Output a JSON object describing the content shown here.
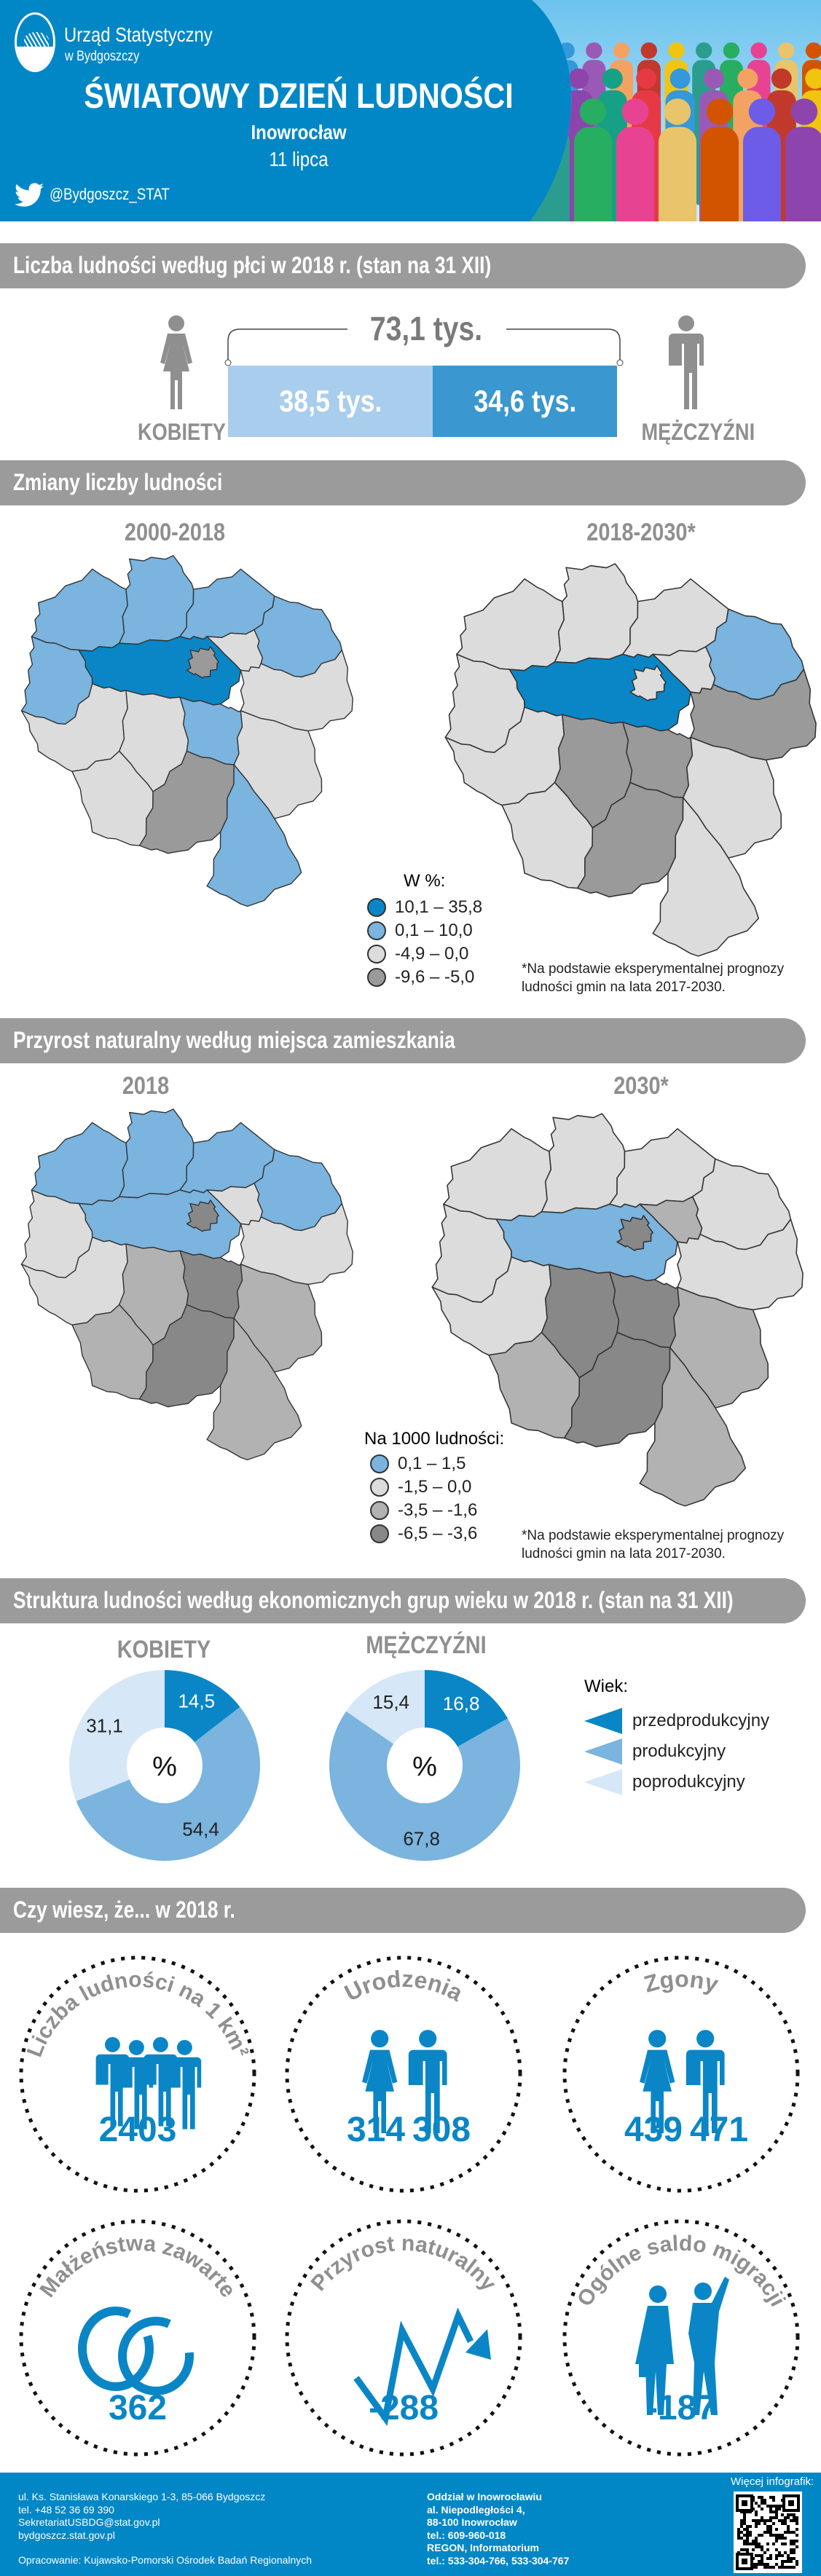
{
  "header": {
    "org_line1": "Urząd Statystyczny",
    "org_line2": "w Bydgoszczy",
    "title": "ŚWIATOWY DZIEŃ LUDNOŚCI",
    "city": "Inowrocław",
    "date": "11 lipca",
    "twitter": "@Bydgoszcz_STAT"
  },
  "sections": {
    "sex": "Liczba ludności według płci w 2018 r. (stan na 31 XII)",
    "change": "Zmiany liczby ludności",
    "natural": "Przyrost naturalny według miejsca zamieszkania",
    "structure": "Struktura ludności według ekonomicznych grup wieku w 2018 r. (stan na 31 XII)",
    "facts": "Czy wiesz, że... w 2018 r."
  },
  "sex": {
    "total": "73,1 tys.",
    "women_value": "38,5 tys.",
    "men_value": "34,6 tys.",
    "women_label": "KOBIETY",
    "men_label": "MĘŻCZYŹNI",
    "women_share": 0.527
  },
  "change": {
    "map1_title": "2000-2018",
    "map2_title": "2018-2030*",
    "legend_title": "W %:",
    "legend": [
      {
        "label": "10,1 – 35,8",
        "color": "#0a86c6"
      },
      {
        "label": "0,1 – 10,0",
        "color": "#7ab4df"
      },
      {
        "label": "-4,9 – 0,0",
        "color": "#dcdcdc"
      },
      {
        "label": "-9,6 – -5,0",
        "color": "#9a9a9a"
      }
    ],
    "footnote_1": "*Na podstawie eksperymentalnej prognozy",
    "footnote_2": "ludności gmin na lata 2017-2030.",
    "map1_classes": [
      1,
      1,
      1,
      1,
      1,
      0,
      2,
      2,
      2,
      2,
      1,
      2,
      2,
      3,
      1,
      3
    ],
    "map2_classes": [
      2,
      2,
      2,
      1,
      2,
      0,
      2,
      3,
      2,
      3,
      3,
      2,
      2,
      3,
      2,
      2
    ]
  },
  "natural": {
    "map1_title": "2018",
    "map2_title": "2030*",
    "legend_title": "Na 1000 ludności:",
    "legend": [
      {
        "label": "0,1 – 1,5",
        "color": "#7ab4df"
      },
      {
        "label": "-1,5 – 0,0",
        "color": "#dcdcdc"
      },
      {
        "label": "-3,5 – -1,6",
        "color": "#b2b2b2"
      },
      {
        "label": "-6,5 – -3,6",
        "color": "#888888"
      }
    ],
    "footnote_1": "*Na podstawie eksperymentalnej prognozy",
    "footnote_2": "ludności gmin na lata 2017-2030.",
    "map1_classes": [
      0,
      0,
      0,
      0,
      1,
      0,
      1,
      1,
      1,
      2,
      3,
      2,
      2,
      3,
      2,
      3
    ],
    "map2_classes": [
      1,
      1,
      1,
      1,
      1,
      0,
      2,
      1,
      1,
      3,
      3,
      2,
      2,
      3,
      2,
      3
    ]
  },
  "structure": {
    "center_symbol": "%",
    "legend_title": "Wiek:",
    "legend": [
      {
        "label": "przedprodukcyjny",
        "color": "#0a86c6"
      },
      {
        "label": "produkcyjny",
        "color": "#7ab4df"
      },
      {
        "label": "poprodukcyjny",
        "color": "#d6e7f7"
      }
    ]
  },
  "chart_data": [
    {
      "type": "pie",
      "title": "KOBIETY",
      "categories": [
        "przedprodukcyjny",
        "produkcyjny",
        "poprodukcyjny"
      ],
      "values": [
        14.5,
        54.4,
        31.1
      ],
      "unit": "%"
    },
    {
      "type": "pie",
      "title": "MĘŻCZYŹNI",
      "categories": [
        "przedprodukcyjny",
        "produkcyjny",
        "poprodukcyjny"
      ],
      "values": [
        16.8,
        67.8,
        15.4
      ],
      "unit": "%"
    }
  ],
  "facts": [
    {
      "label": "Liczba ludności na 1 km²",
      "values": [
        "2403"
      ],
      "icon": "people-group-icon"
    },
    {
      "label": "Urodzenia",
      "values": [
        "314",
        "308"
      ],
      "icon": "woman-man-icon"
    },
    {
      "label": "Zgony",
      "values": [
        "439",
        "471"
      ],
      "icon": "woman-man-icon"
    },
    {
      "label": "Małżeństwa zawarte",
      "values": [
        "362"
      ],
      "icon": "wedding-rings-icon"
    },
    {
      "label": "Przyrost naturalny",
      "values": [
        "-288"
      ],
      "icon": "zigzag-arrow-icon"
    },
    {
      "label": "Ogólne saldo migracji",
      "values": [
        "-187"
      ],
      "icon": "travelers-icon"
    }
  ],
  "footer": {
    "left": [
      "ul. Ks. Stanisława Konarskiego 1-3, 85-066 Bydgoszcz",
      "tel. +48 52 36 69 390",
      "SekretariatUSBDG@stat.gov.pl",
      "bydgoszcz.stat.gov.pl"
    ],
    "credit": "Opracowanie: Kujawsko-Pomorski Ośrodek Badań Regionalnych",
    "middle": [
      "Oddział w Inowrocławiu",
      "al. Niepodległości 4,",
      "88-100 Inowrocław",
      "tel.: 609-960-018",
      "REGON, Informatorium",
      "tel.: 533-304-766, 533-304-767"
    ],
    "more": "Więcej infografik:"
  }
}
